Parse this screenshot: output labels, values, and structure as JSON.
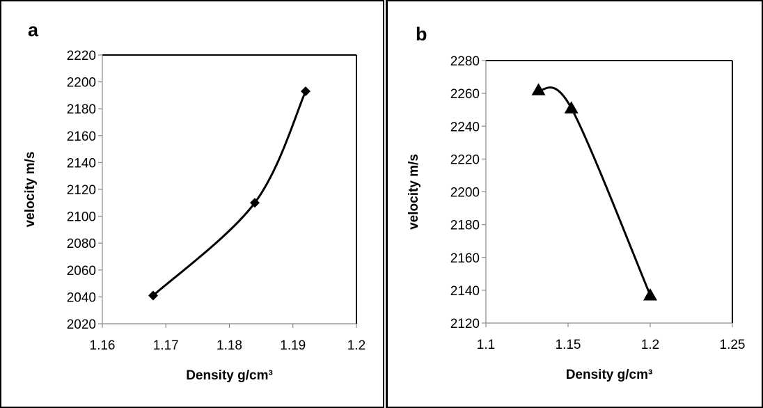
{
  "chart_data": [
    {
      "panel_label": "a",
      "type": "line",
      "xlabel": "Density  g/cm³",
      "ylabel": "velocity m/s",
      "xlim": [
        1.16,
        1.2
      ],
      "ylim": [
        2020,
        2220
      ],
      "x_ticks": [
        1.16,
        1.17,
        1.18,
        1.19,
        1.2
      ],
      "x_tick_labels": [
        "1.16",
        "1.17",
        "1.18",
        "1.19",
        "1.2"
      ],
      "y_ticks": [
        2020,
        2040,
        2060,
        2080,
        2100,
        2120,
        2140,
        2160,
        2180,
        2200,
        2220
      ],
      "y_tick_labels": [
        "2020",
        "2040",
        "2060",
        "2080",
        "2100",
        "2120",
        "2140",
        "2160",
        "2180",
        "2200",
        "2220"
      ],
      "marker": "diamond",
      "smooth": true,
      "grid": false,
      "series": [
        {
          "x": [
            1.168,
            1.184,
            1.192
          ],
          "y": [
            2041,
            2110,
            2193
          ]
        }
      ]
    },
    {
      "panel_label": "b",
      "type": "line",
      "xlabel": "Density  g/cm³",
      "ylabel": "velocity m/s",
      "xlim": [
        1.1,
        1.25
      ],
      "ylim": [
        2120,
        2280
      ],
      "x_ticks": [
        1.1,
        1.15,
        1.2,
        1.25
      ],
      "x_tick_labels": [
        "1.1",
        "1.15",
        "1.2",
        "1.25"
      ],
      "y_ticks": [
        2120,
        2140,
        2160,
        2180,
        2200,
        2220,
        2240,
        2260,
        2280
      ],
      "y_tick_labels": [
        "2120",
        "2140",
        "2160",
        "2180",
        "2200",
        "2220",
        "2240",
        "2260",
        "2280"
      ],
      "marker": "triangle",
      "smooth": true,
      "grid": false,
      "series": [
        {
          "x": [
            1.132,
            1.152,
            1.2
          ],
          "y": [
            2262,
            2251,
            2137
          ]
        }
      ]
    }
  ]
}
